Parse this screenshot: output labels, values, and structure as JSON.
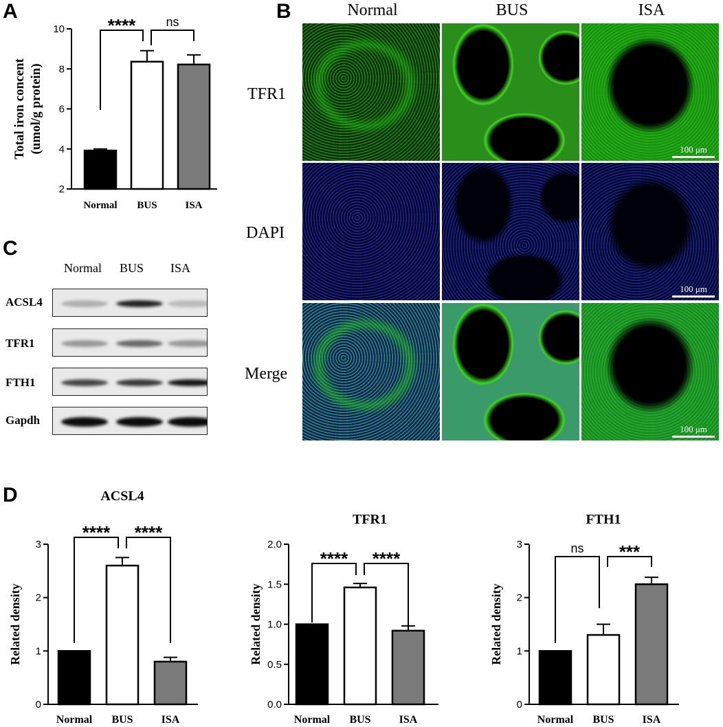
{
  "panels": {
    "A": "A",
    "B": "B",
    "C": "C",
    "D": "D"
  },
  "colors": {
    "normal": "#000000",
    "bus": "#ffffff",
    "isa": "#7a7a7a",
    "tfr1_stain": "#27c21b",
    "dapi_stain": "#1f2bd6",
    "bus_stain": "#3fd622"
  },
  "chart_data": [
    {
      "type": "bar",
      "panel": "A",
      "categories": [
        "Normal",
        "BUS",
        "ISA"
      ],
      "values": [
        3.92,
        8.36,
        8.22
      ],
      "errors": [
        0.08,
        0.55,
        0.48
      ],
      "ylabel": "Total iron concent (umol/g protein)",
      "ylim": [
        2,
        10
      ],
      "yticks": [
        "2",
        "4",
        "6",
        "8",
        "10"
      ],
      "significance": [
        {
          "from": 0,
          "to": 1,
          "label": "****"
        },
        {
          "from": 1,
          "to": 2,
          "label": "ns"
        }
      ]
    },
    {
      "type": "bar",
      "panel": "D",
      "title": "ACSL4",
      "categories": [
        "Normal",
        "BUS",
        "ISA"
      ],
      "values": [
        1.0,
        2.6,
        0.8
      ],
      "errors": [
        0.0,
        0.15,
        0.08
      ],
      "ylabel": "Related density",
      "ylim": [
        0,
        3
      ],
      "yticks": [
        "0",
        "1",
        "2",
        "3"
      ],
      "significance": [
        {
          "from": 0,
          "to": 1,
          "label": "****"
        },
        {
          "from": 1,
          "to": 2,
          "label": "****"
        }
      ]
    },
    {
      "type": "bar",
      "panel": "D",
      "title": "TFR1",
      "categories": [
        "Normal",
        "BUS",
        "ISA"
      ],
      "values": [
        1.0,
        1.46,
        0.92
      ],
      "errors": [
        0.0,
        0.05,
        0.06
      ],
      "ylabel": "Related density",
      "ylim": [
        0,
        2
      ],
      "yticks": [
        "0.0",
        "0.5",
        "1.0",
        "1.5",
        "2.0"
      ],
      "significance": [
        {
          "from": 0,
          "to": 1,
          "label": "****"
        },
        {
          "from": 1,
          "to": 2,
          "label": "****"
        }
      ]
    },
    {
      "type": "bar",
      "panel": "D",
      "title": "FTH1",
      "categories": [
        "Normal",
        "BUS",
        "ISA"
      ],
      "values": [
        1.0,
        1.3,
        2.25
      ],
      "errors": [
        0.0,
        0.2,
        0.13
      ],
      "ylabel": "Related density",
      "ylim": [
        0,
        3
      ],
      "yticks": [
        "0",
        "1",
        "2",
        "3"
      ],
      "significance": [
        {
          "from": 0,
          "to": 1,
          "label": "ns"
        },
        {
          "from": 1,
          "to": 2,
          "label": "***"
        }
      ]
    }
  ],
  "microscopy": {
    "columns": [
      "Normal",
      "BUS",
      "ISA"
    ],
    "rows": [
      "TFR1",
      "DAPI",
      "Merge"
    ],
    "scale_bar": "100 μm"
  },
  "western": {
    "lanes": [
      "Normal",
      "BUS",
      "ISA"
    ],
    "proteins": [
      "ACSL4",
      "TFR1",
      "FTH1",
      "Gapdh"
    ],
    "band_intensity": [
      [
        0.25,
        0.85,
        0.2
      ],
      [
        0.35,
        0.55,
        0.35
      ],
      [
        0.7,
        0.75,
        0.9
      ],
      [
        0.95,
        0.95,
        0.95
      ]
    ]
  }
}
